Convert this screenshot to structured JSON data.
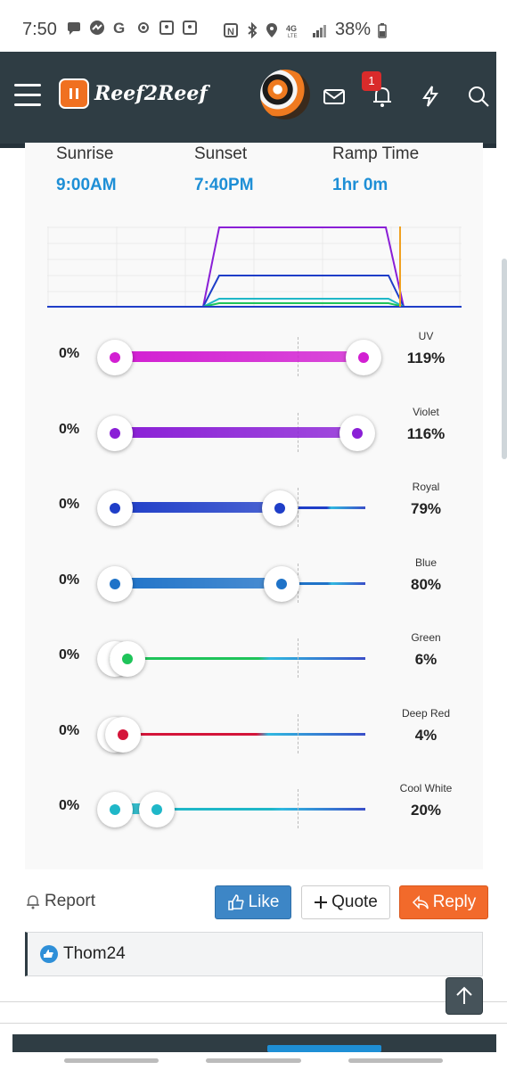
{
  "status_bar": {
    "time": "7:50",
    "battery": "38%"
  },
  "header": {
    "logo_text": "Reef2Reef",
    "notification_count": "1"
  },
  "lighting": {
    "sunrise_label": "Sunrise",
    "sunrise_value": "9:00AM",
    "sunset_label": "Sunset",
    "sunset_value": "7:40PM",
    "ramp_label": "Ramp Time",
    "ramp_value": "1hr 0m",
    "channels": [
      {
        "min": "0%",
        "name": "UV",
        "value": "119%",
        "level": 1.19,
        "color": "#d21fd2"
      },
      {
        "min": "0%",
        "name": "Violet",
        "value": "116%",
        "level": 1.16,
        "color": "#8a1fd6"
      },
      {
        "min": "0%",
        "name": "Royal",
        "value": "79%",
        "level": 0.79,
        "color": "#1f3ec8"
      },
      {
        "min": "0%",
        "name": "Blue",
        "value": "80%",
        "level": 0.8,
        "color": "#1f73c8"
      },
      {
        "min": "0%",
        "name": "Green",
        "value": "6%",
        "level": 0.06,
        "color": "#1fc45a"
      },
      {
        "min": "0%",
        "name": "Deep Red",
        "value": "4%",
        "level": 0.04,
        "color": "#d4153a"
      },
      {
        "min": "0%",
        "name": "Cool White",
        "value": "20%",
        "level": 0.2,
        "color": "#1fb7c8"
      }
    ]
  },
  "actions": {
    "report": "Report",
    "like": "Like",
    "quote": "Quote",
    "reply": "Reply"
  },
  "likes": {
    "user": "Thom24"
  },
  "icons": [
    "menu-icon",
    "mail-icon",
    "bell-icon",
    "bolt-icon",
    "search-icon",
    "bell-outline-icon",
    "thumbs-up-icon",
    "plus-icon",
    "reply-arrow-icon",
    "arrow-up-icon"
  ]
}
